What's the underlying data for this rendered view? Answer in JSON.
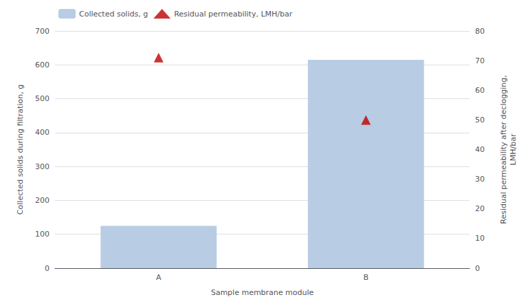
{
  "chart_data": {
    "type": "bar",
    "categories": [
      "A",
      "B"
    ],
    "series": [
      {
        "name": "Collected solids, g",
        "type": "bar",
        "color": "#b8cce4",
        "values": [
          125,
          615
        ]
      },
      {
        "name": "Residual permeability, LMH/bar",
        "type": "scatter",
        "marker": "triangle",
        "color": "#c00000",
        "axis": "y2",
        "values": [
          71,
          50
        ]
      }
    ],
    "xlabel": "Sample membrane module",
    "ylabel": "Collected solids during filtration, g",
    "y2label": "Residual permeability after declogging,\nLMH/bar",
    "ylim": [
      0,
      700
    ],
    "yticks": [
      0,
      100,
      200,
      300,
      400,
      500,
      600,
      700
    ],
    "y2lim": [
      0,
      80
    ],
    "y2ticks": [
      0,
      10,
      20,
      30,
      40,
      50,
      60,
      70,
      80
    ],
    "grid": true,
    "legend": "upper left"
  }
}
